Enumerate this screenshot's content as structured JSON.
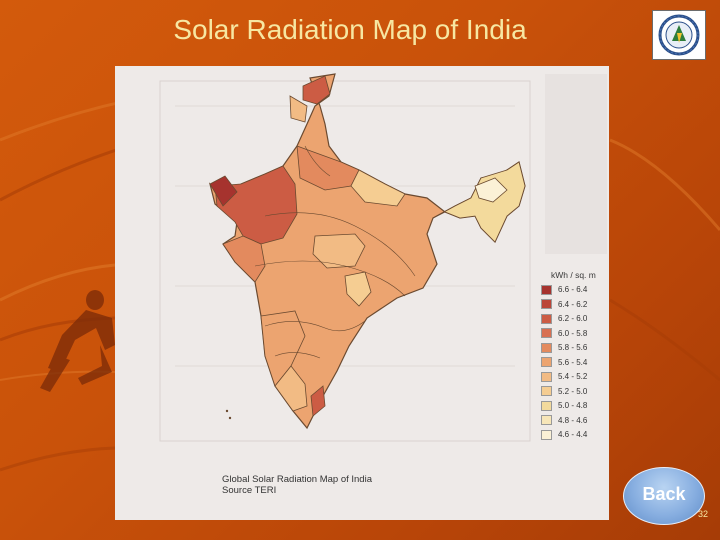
{
  "slide": {
    "title": "Solar Radiation Map of India",
    "page_number": "32",
    "back_label": "Back"
  },
  "map": {
    "caption_line1": "Global Solar Radiation Map of India",
    "caption_line2": "Source TERI",
    "legend_title": "kWh / sq. m",
    "legend": [
      {
        "label": "6.6 - 6.4",
        "color": "#a6332e"
      },
      {
        "label": "6.4 - 6.2",
        "color": "#bb4638"
      },
      {
        "label": "6.2 - 6.0",
        "color": "#cc5c44"
      },
      {
        "label": "6.0 - 5.8",
        "color": "#d87052"
      },
      {
        "label": "5.8 - 5.6",
        "color": "#e38a5e"
      },
      {
        "label": "5.6 - 5.4",
        "color": "#eca470"
      },
      {
        "label": "5.4 - 5.2",
        "color": "#f2bb84"
      },
      {
        "label": "5.2 - 5.0",
        "color": "#f5cd92"
      },
      {
        "label": "5.0 - 4.8",
        "color": "#f3da9c"
      },
      {
        "label": "4.8 - 4.6",
        "color": "#f7e6b8"
      },
      {
        "label": "4.6 - 4.4",
        "color": "#fbf1d6"
      }
    ]
  },
  "colors": {
    "background": "#c9520a",
    "title_text": "#f7e7a2",
    "back_button": "#87aee0"
  },
  "icons": {
    "logo": "organization-emblem-icon",
    "background_figure": "runner-silhouette-icon"
  }
}
